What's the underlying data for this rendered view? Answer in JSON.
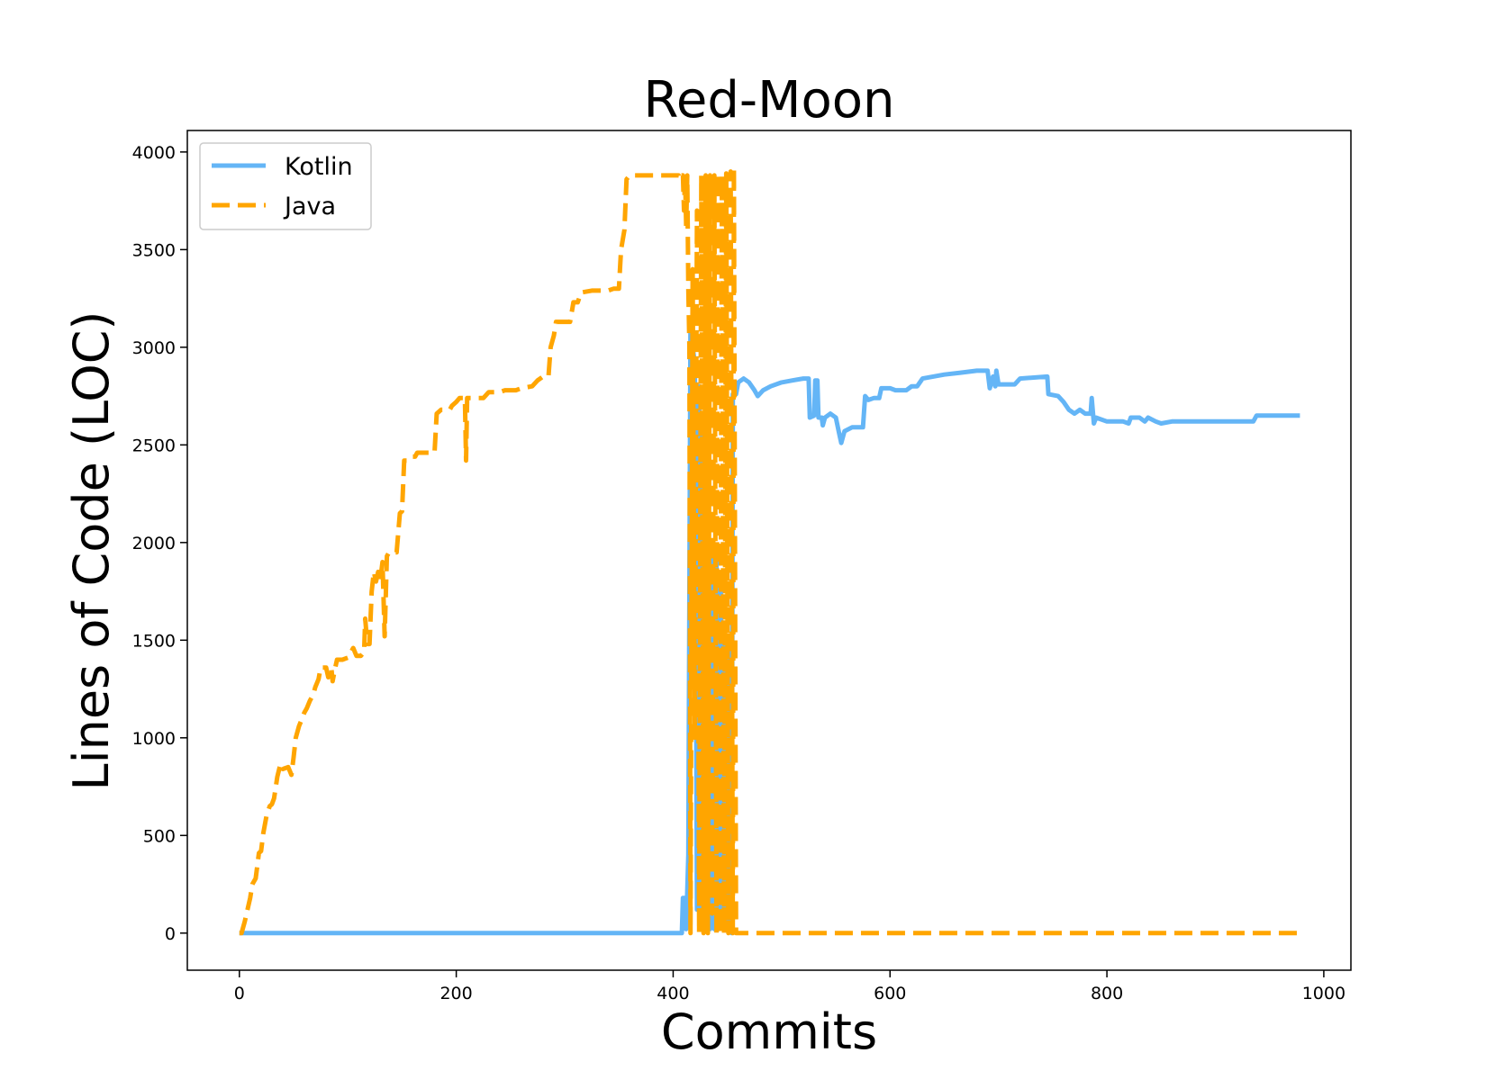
{
  "chart_data": {
    "type": "line",
    "title": "Red-Moon",
    "xlabel": "Commits",
    "ylabel": "Lines of Code (LOC)",
    "xlim": [
      -48,
      1025
    ],
    "ylim": [
      -190,
      4110
    ],
    "xticks": [
      0,
      200,
      400,
      600,
      800,
      1000
    ],
    "yticks": [
      0,
      500,
      1000,
      1500,
      2000,
      2500,
      3000,
      3500,
      4000
    ],
    "legend_position": "upper left",
    "grid": false,
    "colors": {
      "Kotlin": "#64B5F6",
      "Java": "#FFA500"
    },
    "series": [
      {
        "name": "Kotlin",
        "style": "solid",
        "points": [
          [
            0,
            0
          ],
          [
            408,
            0
          ],
          [
            409,
            180
          ],
          [
            411,
            180
          ],
          [
            412,
            20
          ],
          [
            414,
            400
          ],
          [
            416,
            3140
          ],
          [
            418,
            3000
          ],
          [
            420,
            2920
          ],
          [
            422,
            120
          ],
          [
            424,
            2800
          ],
          [
            426,
            50
          ],
          [
            428,
            2600
          ],
          [
            430,
            30
          ],
          [
            432,
            2300
          ],
          [
            434,
            20
          ],
          [
            436,
            2000
          ],
          [
            438,
            20
          ],
          [
            440,
            1900
          ],
          [
            442,
            20
          ],
          [
            444,
            1800
          ],
          [
            446,
            20
          ],
          [
            448,
            1500
          ],
          [
            450,
            20
          ],
          [
            452,
            1500
          ],
          [
            454,
            0
          ],
          [
            455,
            2760
          ],
          [
            458,
            2760
          ],
          [
            460,
            2820
          ],
          [
            465,
            2840
          ],
          [
            470,
            2820
          ],
          [
            475,
            2780
          ],
          [
            478,
            2750
          ],
          [
            483,
            2780
          ],
          [
            490,
            2800
          ],
          [
            500,
            2820
          ],
          [
            510,
            2830
          ],
          [
            520,
            2840
          ],
          [
            525,
            2840
          ],
          [
            526,
            2640
          ],
          [
            530,
            2650
          ],
          [
            531,
            2830
          ],
          [
            533,
            2830
          ],
          [
            534,
            2640
          ],
          [
            537,
            2640
          ],
          [
            538,
            2600
          ],
          [
            540,
            2640
          ],
          [
            545,
            2660
          ],
          [
            550,
            2640
          ],
          [
            553,
            2560
          ],
          [
            555,
            2510
          ],
          [
            558,
            2570
          ],
          [
            565,
            2590
          ],
          [
            570,
            2590
          ],
          [
            575,
            2590
          ],
          [
            577,
            2750
          ],
          [
            580,
            2730
          ],
          [
            585,
            2740
          ],
          [
            590,
            2740
          ],
          [
            592,
            2790
          ],
          [
            600,
            2790
          ],
          [
            605,
            2780
          ],
          [
            615,
            2780
          ],
          [
            620,
            2800
          ],
          [
            625,
            2800
          ],
          [
            630,
            2840
          ],
          [
            650,
            2860
          ],
          [
            665,
            2870
          ],
          [
            680,
            2880
          ],
          [
            690,
            2880
          ],
          [
            692,
            2790
          ],
          [
            695,
            2850
          ],
          [
            697,
            2800
          ],
          [
            698,
            2880
          ],
          [
            700,
            2810
          ],
          [
            715,
            2810
          ],
          [
            720,
            2840
          ],
          [
            745,
            2850
          ],
          [
            746,
            2760
          ],
          [
            755,
            2750
          ],
          [
            760,
            2720
          ],
          [
            765,
            2680
          ],
          [
            770,
            2660
          ],
          [
            775,
            2680
          ],
          [
            780,
            2660
          ],
          [
            785,
            2660
          ],
          [
            786,
            2740
          ],
          [
            788,
            2610
          ],
          [
            790,
            2640
          ],
          [
            800,
            2620
          ],
          [
            815,
            2620
          ],
          [
            820,
            2610
          ],
          [
            822,
            2640
          ],
          [
            830,
            2640
          ],
          [
            835,
            2620
          ],
          [
            838,
            2640
          ],
          [
            845,
            2620
          ],
          [
            850,
            2610
          ],
          [
            860,
            2620
          ],
          [
            900,
            2620
          ],
          [
            935,
            2620
          ],
          [
            938,
            2650
          ],
          [
            945,
            2650
          ],
          [
            978,
            2650
          ]
        ]
      },
      {
        "name": "Java",
        "style": "dashed",
        "points": [
          [
            0,
            0
          ],
          [
            2,
            0
          ],
          [
            5,
            60
          ],
          [
            10,
            180
          ],
          [
            12,
            250
          ],
          [
            15,
            280
          ],
          [
            18,
            410
          ],
          [
            20,
            420
          ],
          [
            22,
            510
          ],
          [
            25,
            600
          ],
          [
            28,
            650
          ],
          [
            30,
            660
          ],
          [
            32,
            690
          ],
          [
            35,
            800
          ],
          [
            38,
            870
          ],
          [
            40,
            840
          ],
          [
            45,
            850
          ],
          [
            48,
            810
          ],
          [
            50,
            900
          ],
          [
            52,
            1000
          ],
          [
            55,
            1060
          ],
          [
            58,
            1100
          ],
          [
            60,
            1130
          ],
          [
            62,
            1150
          ],
          [
            65,
            1190
          ],
          [
            68,
            1220
          ],
          [
            70,
            1260
          ],
          [
            73,
            1300
          ],
          [
            75,
            1360
          ],
          [
            80,
            1360
          ],
          [
            82,
            1310
          ],
          [
            84,
            1360
          ],
          [
            85,
            1350
          ],
          [
            86,
            1290
          ],
          [
            88,
            1350
          ],
          [
            90,
            1400
          ],
          [
            95,
            1400
          ],
          [
            100,
            1410
          ],
          [
            105,
            1460
          ],
          [
            108,
            1420
          ],
          [
            112,
            1420
          ],
          [
            115,
            1440
          ],
          [
            116,
            1610
          ],
          [
            118,
            1480
          ],
          [
            120,
            1480
          ],
          [
            122,
            1750
          ],
          [
            124,
            1850
          ],
          [
            126,
            1800
          ],
          [
            128,
            1850
          ],
          [
            130,
            1810
          ],
          [
            132,
            1900
          ],
          [
            134,
            1520
          ],
          [
            136,
            1930
          ],
          [
            138,
            1950
          ],
          [
            145,
            1950
          ],
          [
            148,
            2150
          ],
          [
            150,
            2160
          ],
          [
            152,
            2420
          ],
          [
            155,
            2420
          ],
          [
            158,
            2440
          ],
          [
            162,
            2440
          ],
          [
            164,
            2460
          ],
          [
            180,
            2460
          ],
          [
            182,
            2660
          ],
          [
            186,
            2680
          ],
          [
            194,
            2680
          ],
          [
            196,
            2700
          ],
          [
            200,
            2720
          ],
          [
            203,
            2740
          ],
          [
            208,
            2740
          ],
          [
            209,
            2420
          ],
          [
            210,
            2740
          ],
          [
            225,
            2740
          ],
          [
            230,
            2770
          ],
          [
            240,
            2770
          ],
          [
            245,
            2780
          ],
          [
            255,
            2780
          ],
          [
            260,
            2790
          ],
          [
            270,
            2800
          ],
          [
            275,
            2830
          ],
          [
            280,
            2850
          ],
          [
            285,
            2850
          ],
          [
            287,
            3000
          ],
          [
            290,
            3060
          ],
          [
            292,
            3130
          ],
          [
            305,
            3130
          ],
          [
            308,
            3230
          ],
          [
            312,
            3230
          ],
          [
            315,
            3280
          ],
          [
            325,
            3290
          ],
          [
            340,
            3290
          ],
          [
            345,
            3300
          ],
          [
            350,
            3300
          ],
          [
            352,
            3500
          ],
          [
            355,
            3600
          ],
          [
            357,
            3860
          ],
          [
            360,
            3880
          ],
          [
            405,
            3880
          ],
          [
            406,
            3860
          ],
          [
            407,
            3880
          ],
          [
            409,
            3880
          ],
          [
            410,
            3700
          ],
          [
            411,
            3880
          ],
          [
            412,
            3620
          ],
          [
            413,
            3880
          ],
          [
            414,
            3300
          ],
          [
            415,
            3000
          ],
          [
            416,
            0
          ],
          [
            418,
            3400
          ],
          [
            420,
            1000
          ],
          [
            422,
            3700
          ],
          [
            424,
            0
          ],
          [
            426,
            3880
          ],
          [
            428,
            0
          ],
          [
            430,
            3880
          ],
          [
            432,
            0
          ],
          [
            434,
            3880
          ],
          [
            436,
            100
          ],
          [
            438,
            3880
          ],
          [
            440,
            0
          ],
          [
            441,
            3890
          ],
          [
            443,
            0
          ],
          [
            445,
            3880
          ],
          [
            447,
            0
          ],
          [
            449,
            3890
          ],
          [
            451,
            0
          ],
          [
            453,
            3900
          ],
          [
            455,
            0
          ],
          [
            456,
            3920
          ],
          [
            458,
            0
          ],
          [
            978,
            0
          ]
        ]
      }
    ]
  }
}
